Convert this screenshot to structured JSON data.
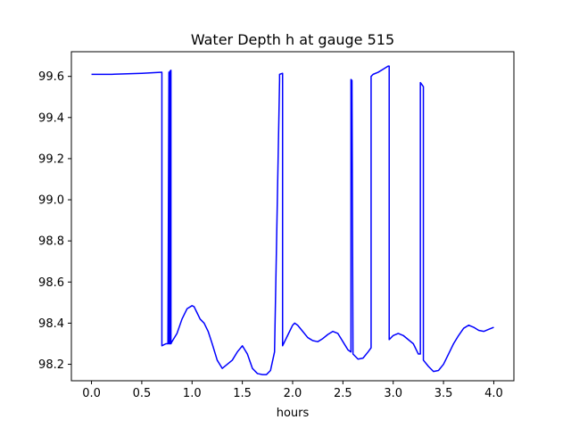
{
  "chart_data": {
    "type": "line",
    "title": "Water Depth h at gauge 515",
    "xlabel": "hours",
    "ylabel": "",
    "xlim": [
      -0.2,
      4.2
    ],
    "ylim": [
      98.12,
      99.72
    ],
    "xticks": [
      0.0,
      0.5,
      1.0,
      1.5,
      2.0,
      2.5,
      3.0,
      3.5,
      4.0
    ],
    "xtick_labels": [
      "0.0",
      "0.5",
      "1.0",
      "1.5",
      "2.0",
      "2.5",
      "3.0",
      "3.5",
      "4.0"
    ],
    "yticks": [
      98.2,
      98.4,
      98.6,
      98.8,
      99.0,
      99.2,
      99.4,
      99.6
    ],
    "ytick_labels": [
      "98.2",
      "98.4",
      "98.6",
      "98.8",
      "99.0",
      "99.2",
      "99.4",
      "99.6"
    ],
    "grid": false,
    "legend": "none",
    "series": [
      {
        "color": "#0000ff",
        "x": [
          0.0,
          0.2,
          0.5,
          0.7,
          0.7,
          0.74,
          0.76,
          0.77,
          0.77,
          0.78,
          0.78,
          0.79,
          0.79,
          0.8,
          0.85,
          0.9,
          0.95,
          1.0,
          1.02,
          1.05,
          1.08,
          1.12,
          1.16,
          1.2,
          1.25,
          1.3,
          1.35,
          1.4,
          1.45,
          1.5,
          1.55,
          1.6,
          1.65,
          1.7,
          1.74,
          1.78,
          1.82,
          1.87,
          1.87,
          1.9,
          1.9,
          1.95,
          2.0,
          2.02,
          2.05,
          2.1,
          2.15,
          2.2,
          2.25,
          2.3,
          2.35,
          2.4,
          2.45,
          2.5,
          2.55,
          2.58,
          2.58,
          2.59,
          2.6,
          2.65,
          2.7,
          2.75,
          2.78,
          2.78,
          2.8,
          2.85,
          2.9,
          2.95,
          2.96,
          2.96,
          3.0,
          3.05,
          3.1,
          3.15,
          3.2,
          3.25,
          3.27,
          3.27,
          3.3,
          3.3,
          3.35,
          3.4,
          3.45,
          3.5,
          3.55,
          3.6,
          3.65,
          3.7,
          3.75,
          3.8,
          3.85,
          3.9,
          3.95,
          4.0
        ],
        "y": [
          99.61,
          99.61,
          99.615,
          99.62,
          98.29,
          98.3,
          98.3,
          99.62,
          98.3,
          98.3,
          99.625,
          99.63,
          98.3,
          98.31,
          98.35,
          98.42,
          98.47,
          98.485,
          98.48,
          98.45,
          98.42,
          98.4,
          98.36,
          98.3,
          98.22,
          98.18,
          98.2,
          98.22,
          98.26,
          98.29,
          98.25,
          98.18,
          98.155,
          98.15,
          98.15,
          98.17,
          98.26,
          99.58,
          99.61,
          99.615,
          98.29,
          98.34,
          98.39,
          98.4,
          98.39,
          98.36,
          98.33,
          98.315,
          98.31,
          98.325,
          98.345,
          98.36,
          98.35,
          98.31,
          98.27,
          98.26,
          99.585,
          99.58,
          98.25,
          98.225,
          98.23,
          98.26,
          98.28,
          99.6,
          99.61,
          99.62,
          99.635,
          99.65,
          99.65,
          98.32,
          98.34,
          98.35,
          98.34,
          98.32,
          98.3,
          98.25,
          98.25,
          99.57,
          99.55,
          98.22,
          98.19,
          98.165,
          98.17,
          98.2,
          98.25,
          98.3,
          98.34,
          98.375,
          98.39,
          98.38,
          98.365,
          98.36,
          98.37,
          98.38
        ]
      }
    ]
  }
}
